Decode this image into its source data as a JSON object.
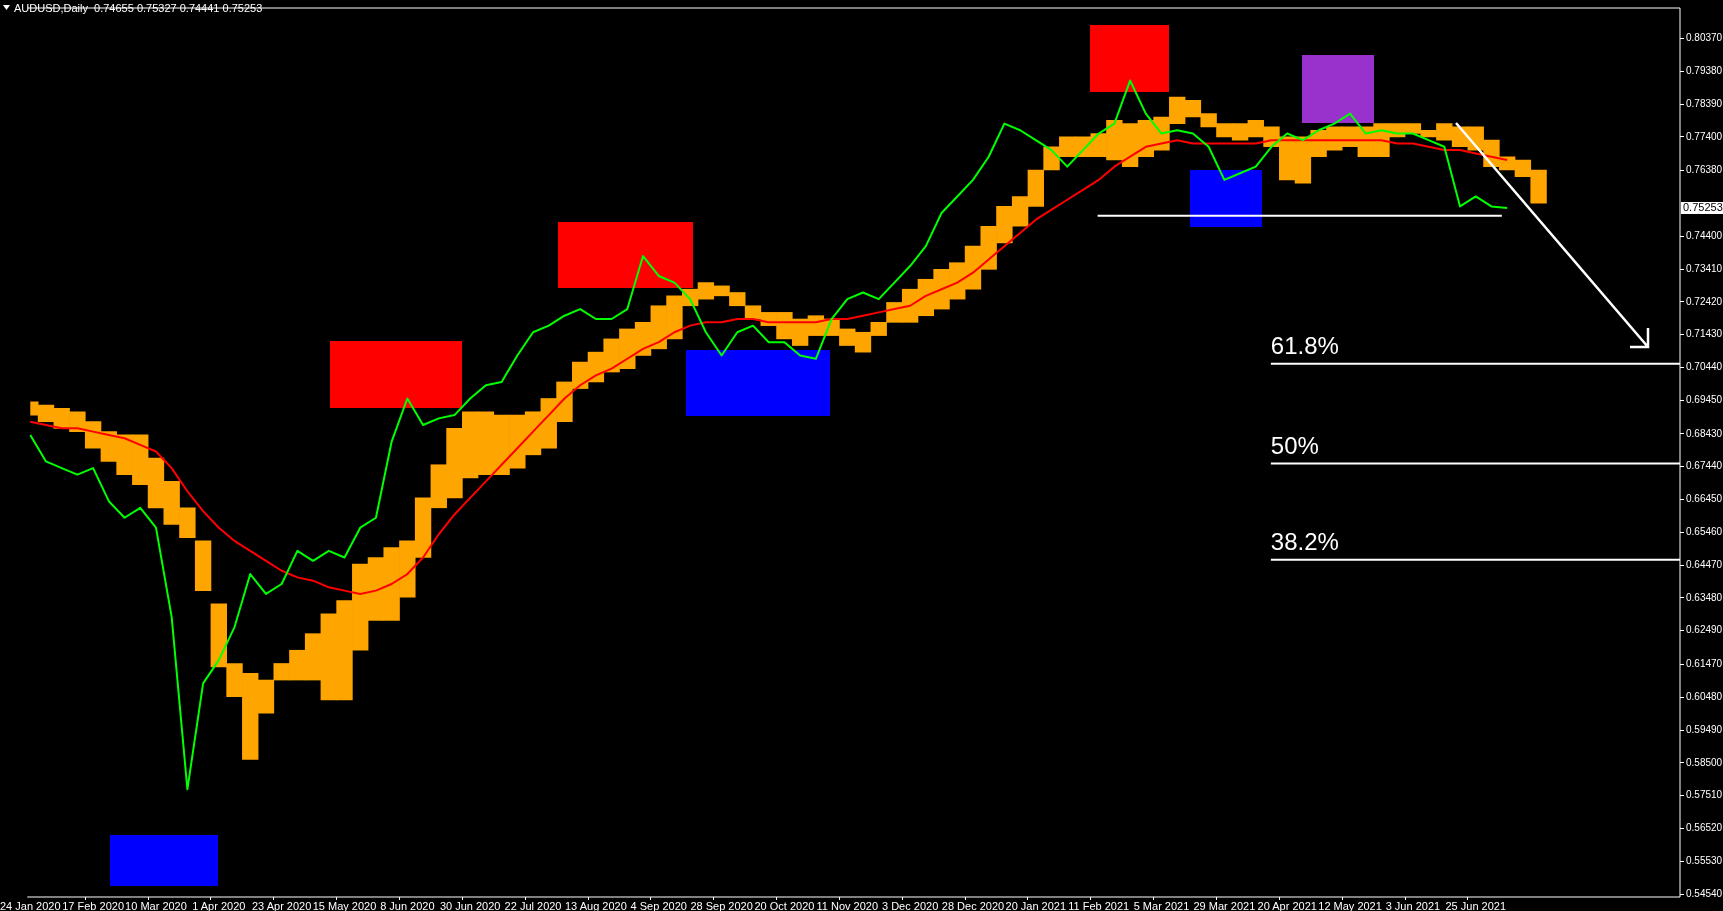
{
  "chart_data": {
    "type": "line",
    "title": "AUDUSD,Daily  0.74655 0.75327 0.74441 0.75253",
    "categories": [
      "24 Jan 2020",
      null,
      null,
      null,
      "17 Feb 2020",
      null,
      null,
      null,
      "10 Mar 2020",
      null,
      null,
      null,
      "1 Apr 2020",
      null,
      null,
      null,
      "23 Apr 2020",
      null,
      null,
      null,
      "15 May 2020",
      null,
      null,
      null,
      "8 Jun 2020",
      null,
      null,
      null,
      "30 Jun 2020",
      null,
      null,
      null,
      "22 Jul 2020",
      null,
      null,
      null,
      "13 Aug 2020",
      null,
      null,
      null,
      "4 Sep 2020",
      null,
      null,
      null,
      "28 Sep 2020",
      null,
      null,
      null,
      "20 Oct 2020",
      null,
      null,
      null,
      "11 Nov 2020",
      null,
      null,
      null,
      "3 Dec 2020",
      null,
      null,
      null,
      "28 Dec 2020",
      null,
      null,
      null,
      "20 Jan 2021",
      null,
      null,
      null,
      "11 Feb 2021",
      null,
      null,
      null,
      "5 Mar 2021",
      null,
      null,
      null,
      "29 Mar 2021",
      null,
      null,
      null,
      "20 Apr 2021",
      null,
      null,
      null,
      "12 May 2021",
      null,
      null,
      null,
      "3 Jun 2021",
      null,
      null,
      null,
      "25 Jun 2021",
      null,
      null,
      null,
      null,
      null,
      null,
      null,
      null,
      null,
      null,
      null,
      null,
      null
    ],
    "series": [
      {
        "type": "bar",
        "color": "#ffa500",
        "values": [
          0.004,
          0.005,
          0.006,
          0.006,
          0.008,
          0.009,
          0.012,
          0.015,
          0.015,
          0.013,
          0.009,
          0.015,
          0.019,
          0.01,
          0.026,
          0.01,
          0.005,
          0.009,
          0.014,
          0.026,
          0.03,
          0.026,
          0.019,
          0.022,
          0.017,
          0.018,
          0.013,
          0.021,
          0.02,
          0.019,
          0.018,
          0.016,
          0.013,
          0.015,
          0.012,
          0.008,
          0.009,
          0.01,
          0.012,
          0.01,
          0.013,
          0.013,
          0.005,
          0.005,
          0.003,
          0.004,
          0.004,
          0.004,
          0.008,
          0.008,
          0.006,
          0.005,
          0.005,
          0.006,
          0.004,
          0.006,
          0.01,
          0.011,
          0.012,
          0.011,
          0.013,
          0.013,
          0.011,
          0.009,
          0.011,
          0.007,
          0.006,
          0.006,
          0.007,
          0.012,
          0.013,
          0.011,
          0.01,
          0.008,
          0.005,
          0.004,
          0.004,
          0.005,
          0.005,
          0.006,
          0.013,
          0.014,
          0.008,
          0.007,
          0.006,
          0.009,
          0.01,
          0.004,
          0.003,
          0.002,
          0.005,
          0.006,
          0.007,
          0.008,
          0.004,
          0.005,
          0.01,
          null,
          null,
          null,
          null,
          null,
          null,
          null,
          null,
          null
        ],
        "base": [
          0.69,
          0.688,
          0.686,
          0.685,
          0.68,
          0.676,
          0.672,
          0.669,
          0.662,
          0.657,
          0.653,
          0.637,
          0.614,
          0.605,
          0.586,
          0.6,
          0.61,
          0.61,
          0.61,
          0.604,
          0.604,
          0.619,
          0.628,
          0.628,
          0.635,
          0.647,
          0.662,
          0.665,
          0.671,
          0.672,
          0.672,
          0.674,
          0.678,
          0.68,
          0.688,
          0.698,
          0.7,
          0.703,
          0.704,
          0.708,
          0.71,
          0.713,
          0.723,
          0.725,
          0.726,
          0.723,
          0.719,
          0.717,
          0.713,
          0.711,
          0.714,
          0.714,
          0.711,
          0.709,
          0.714,
          0.718,
          0.718,
          0.72,
          0.722,
          0.725,
          0.728,
          0.734,
          0.742,
          0.747,
          0.753,
          0.764,
          0.768,
          0.768,
          0.768,
          0.767,
          0.765,
          0.768,
          0.77,
          0.778,
          0.78,
          0.777,
          0.774,
          0.773,
          0.774,
          0.771,
          0.761,
          0.76,
          0.768,
          0.77,
          0.771,
          0.768,
          0.768,
          0.774,
          0.775,
          0.774,
          0.773,
          0.771,
          0.77,
          0.765,
          0.764,
          0.762,
          0.754,
          null,
          null,
          null,
          null,
          null,
          null,
          null,
          null,
          null
        ]
      },
      {
        "type": "line",
        "color": "#ff0000",
        "values": [
          0.688,
          0.687,
          0.686,
          0.686,
          0.685,
          0.684,
          0.683,
          0.681,
          0.679,
          0.674,
          0.667,
          0.661,
          0.656,
          0.652,
          0.649,
          0.646,
          0.643,
          0.641,
          0.64,
          0.638,
          0.637,
          0.636,
          0.637,
          0.639,
          0.642,
          0.647,
          0.654,
          0.66,
          0.665,
          0.67,
          0.675,
          0.68,
          0.685,
          0.69,
          0.695,
          0.699,
          0.702,
          0.704,
          0.707,
          0.71,
          0.712,
          0.715,
          0.717,
          0.718,
          0.718,
          0.719,
          0.719,
          0.718,
          0.718,
          0.718,
          0.718,
          0.719,
          0.719,
          0.72,
          0.721,
          0.722,
          0.723,
          0.726,
          0.728,
          0.73,
          0.733,
          0.737,
          0.741,
          0.745,
          0.749,
          0.752,
          0.755,
          0.758,
          0.761,
          0.765,
          0.768,
          0.771,
          0.772,
          0.773,
          0.772,
          0.772,
          0.772,
          0.772,
          0.772,
          0.773,
          0.773,
          0.773,
          0.773,
          0.773,
          0.773,
          0.773,
          0.773,
          0.772,
          0.772,
          0.771,
          0.77,
          0.77,
          0.769,
          0.768,
          0.767,
          null,
          null,
          null,
          null,
          null,
          null,
          null,
          null,
          null,
          null,
          null
        ]
      },
      {
        "color": "#00ff00",
        "values": [
          0.684,
          0.676,
          0.674,
          0.672,
          0.674,
          0.664,
          0.659,
          0.662,
          0.656,
          0.629,
          0.577,
          0.609,
          0.616,
          0.626,
          0.642,
          0.636,
          0.639,
          0.649,
          0.646,
          0.649,
          0.647,
          0.656,
          0.659,
          0.682,
          0.695,
          0.687,
          0.689,
          0.69,
          0.695,
          0.699,
          0.7,
          0.708,
          0.715,
          0.717,
          0.72,
          0.722,
          0.719,
          0.719,
          0.722,
          0.738,
          0.732,
          0.73,
          0.725,
          0.715,
          0.708,
          0.715,
          0.717,
          0.712,
          0.712,
          0.708,
          0.707,
          0.719,
          0.725,
          0.727,
          0.725,
          0.73,
          0.735,
          0.741,
          0.751,
          0.756,
          0.761,
          0.768,
          0.778,
          0.776,
          0.773,
          0.77,
          0.765,
          0.77,
          0.775,
          0.778,
          0.791,
          0.781,
          0.775,
          0.776,
          0.775,
          0.771,
          0.761,
          0.763,
          0.765,
          0.771,
          0.775,
          0.773,
          0.776,
          0.778,
          0.781,
          0.775,
          0.776,
          0.775,
          0.775,
          0.773,
          0.771,
          0.753,
          0.756,
          0.753,
          0.7525,
          null,
          null,
          null,
          null,
          null,
          null,
          null,
          null,
          null,
          null,
          null
        ]
      }
    ],
    "ylim": [
      0.5445,
      0.8129
    ],
    "yticks": [
      {
        "value": 0.8037,
        "label": "0.80370"
      },
      {
        "value": 0.7938,
        "label": "0.79380"
      },
      {
        "value": 0.7839,
        "label": "0.78390"
      },
      {
        "value": 0.774,
        "label": "0.77400"
      },
      {
        "value": 0.7638,
        "label": "0.76380"
      },
      {
        "value": 0.744,
        "label": "0.74400"
      },
      {
        "value": 0.7341,
        "label": "0.73410"
      },
      {
        "value": 0.7242,
        "label": "0.72420"
      },
      {
        "value": 0.7143,
        "label": "0.71430"
      },
      {
        "value": 0.7044,
        "label": "0.70440"
      },
      {
        "value": 0.6945,
        "label": "0.69450"
      },
      {
        "value": 0.6843,
        "label": "0.68430"
      },
      {
        "value": 0.6744,
        "label": "0.67440"
      },
      {
        "value": 0.6645,
        "label": "0.66450"
      },
      {
        "value": 0.6546,
        "label": "0.65460"
      },
      {
        "value": 0.6447,
        "label": "0.64470"
      },
      {
        "value": 0.6348,
        "label": "0.63480"
      },
      {
        "value": 0.6249,
        "label": "0.62490"
      },
      {
        "value": 0.6147,
        "label": "0.61470"
      },
      {
        "value": 0.6048,
        "label": "0.60480"
      },
      {
        "value": 0.5949,
        "label": "0.59490"
      },
      {
        "value": 0.585,
        "label": "0.58500"
      },
      {
        "value": 0.5751,
        "label": "0.57510"
      },
      {
        "value": 0.5652,
        "label": "0.56520"
      },
      {
        "value": 0.5553,
        "label": "0.55530"
      },
      {
        "value": 0.5454,
        "label": "0.54540"
      }
    ],
    "ref_lines": [
      {
        "axis": "y",
        "value": 0.7502,
        "color": "#ffffff"
      },
      {
        "axis": "y",
        "value": 0.7055,
        "color": "#ffffff"
      },
      {
        "axis": "y",
        "value": 0.6754,
        "color": "#ffffff"
      },
      {
        "axis": "y",
        "value": 0.6463,
        "color": "#ffffff"
      }
    ],
    "annotations": [
      "0.75253",
      {
        "text": "61.8%",
        "y": 0.7055
      },
      {
        "text": "50%",
        "y": 0.6754
      },
      {
        "text": "38.2%",
        "y": 0.6463
      }
    ],
    "grid": false,
    "legend": false,
    "marker": "none"
  }
}
